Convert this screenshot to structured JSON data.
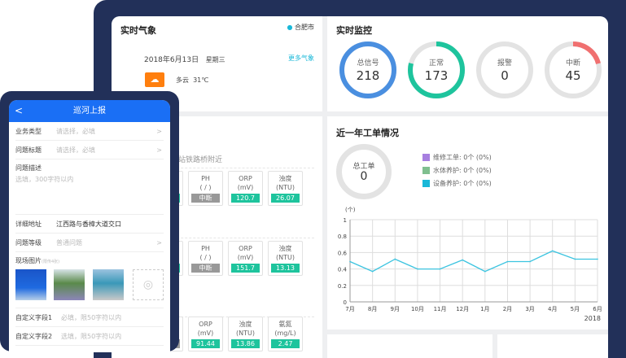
{
  "weather": {
    "title": "实时气象",
    "city": "合肥市",
    "date": "2018年6月13日",
    "weekday": "星期三",
    "more": "更多气象",
    "condition": "多云",
    "temp": "31℃",
    "icon": "partly-cloudy-icon",
    "icon_color": "#ff7f0e"
  },
  "monitor": {
    "title": "实时监控",
    "rings": [
      {
        "label": "总信号",
        "value": "218",
        "fraction": 1.0,
        "color": "#4a8fe0"
      },
      {
        "label": "正常",
        "value": "173",
        "fraction": 0.79,
        "color": "#1ec49d"
      },
      {
        "label": "报警",
        "value": "0",
        "fraction": 0,
        "color": "#e0e0e0"
      },
      {
        "label": "中断",
        "value": "45",
        "fraction": 0.21,
        "color": "#f07070"
      }
    ]
  },
  "stations": [
    {
      "title": "河处理站铁路桥附近",
      "boxes": [
        {
          "l1": "氮",
          "l2": "g/L)",
          "v": ".71",
          "off": false
        },
        {
          "l1": "PH",
          "l2": "( / )",
          "v": "中断",
          "off": true
        },
        {
          "l1": "ORP",
          "l2": "(mV)",
          "v": "120.7",
          "off": false
        },
        {
          "l1": "浊度",
          "l2": "(NTU)",
          "v": "26.07",
          "off": false
        }
      ]
    },
    {
      "title": "桥附近",
      "boxes": [
        {
          "l1": "氮",
          "l2": "g/L)",
          "v": "42",
          "off": false
        },
        {
          "l1": "PH",
          "l2": "( / )",
          "v": "中断",
          "off": true
        },
        {
          "l1": "ORP",
          "l2": "(mV)",
          "v": "151.7",
          "off": false
        },
        {
          "l1": "浊度",
          "l2": "(NTU)",
          "v": "13.13",
          "off": false
        }
      ]
    },
    {
      "title": "闸",
      "subtitle": "附近",
      "boxes": [
        {
          "l1": "H",
          "l2": "/ )",
          "v": "断",
          "off": true
        },
        {
          "l1": "ORP",
          "l2": "(mV)",
          "v": "91.44",
          "off": false
        },
        {
          "l1": "浊度",
          "l2": "(NTU)",
          "v": "13.86",
          "off": false
        },
        {
          "l1": "氨氮",
          "l2": "(mg/L)",
          "v": "2.47",
          "off": false
        }
      ]
    }
  ],
  "orders": {
    "title": "近一年工单情况",
    "total_label": "总工单",
    "total": "0",
    "legend": [
      {
        "label": "维修工单:  0个 (0%)",
        "color": "#a77fe0"
      },
      {
        "label": "水体养护:  0个 (0%)",
        "color": "#7fbf8f"
      },
      {
        "label": "设备养护:  0个 (0%)",
        "color": "#1ab8d8"
      }
    ]
  },
  "chart_data": {
    "type": "line",
    "ylabel": "(个)",
    "categories": [
      "7月",
      "8月",
      "9月",
      "10月",
      "11月",
      "12月",
      "1月",
      "2月",
      "3月",
      "4月",
      "5月",
      "6月"
    ],
    "year_label": "2018",
    "ylim": [
      0,
      1
    ],
    "yticks": [
      "0",
      "0.2",
      "0.4",
      "0.6",
      "0.8",
      "1"
    ],
    "grid": true,
    "color": "#3cc4e0",
    "values": [
      0.49,
      0.37,
      0.52,
      0.4,
      0.4,
      0.51,
      0.37,
      0.49,
      0.49,
      0.62,
      0.52,
      0.52
    ]
  },
  "phone": {
    "title": "巡河上报",
    "back": "<",
    "fields": [
      {
        "k": "业务类型",
        "p": "请选择，必填",
        "arrow": ">"
      },
      {
        "k": "问题标题",
        "p": "请选择，必填",
        "arrow": ">"
      }
    ],
    "desc_label": "问题描述",
    "desc_placeholder": "选填，300字符以内",
    "address_label": "详细地址",
    "address": "江西路与香樟大道交口",
    "level_label": "问题等级",
    "level": "普通问题",
    "level_arrow": ">",
    "photos_label": "现场图片",
    "photos_hint": "(限传4张)",
    "custom1_label": "自定义字段1",
    "custom1": "必填，限50字符以内",
    "custom2_label": "自定义字段2",
    "custom2": "选填，限50字符以内"
  }
}
